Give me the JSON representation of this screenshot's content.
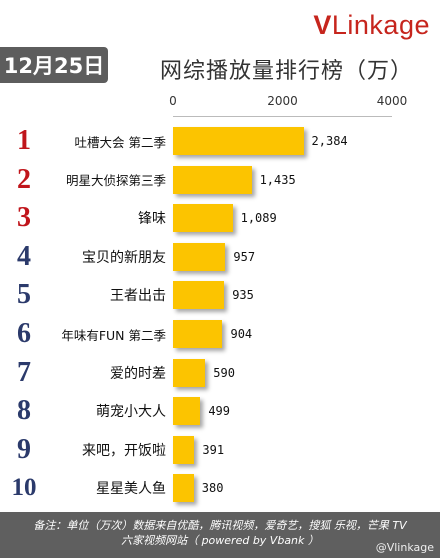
{
  "header": {
    "date_tab": "12月25日",
    "brand_prefix": "V",
    "brand_rest": "Linkage",
    "title": "网综播放量排行榜（万）"
  },
  "chart_data": {
    "type": "bar",
    "orientation": "horizontal",
    "title": "网综播放量排行榜（万）",
    "xlim": [
      0,
      4000
    ],
    "xticks": [
      "0",
      "2000",
      "4000"
    ],
    "rank_colors": {
      "top": "#c0151b",
      "other": "#2b3a6b"
    },
    "bar_color": "#fcc400",
    "categories": [
      {
        "rank": "1",
        "name": "吐槽大会 第二季",
        "value": 2384,
        "label": "2,384"
      },
      {
        "rank": "2",
        "name": "明星大侦探第三季",
        "value": 1435,
        "label": "1,435"
      },
      {
        "rank": "3",
        "name": "锋味",
        "value": 1089,
        "label": "1,089"
      },
      {
        "rank": "4",
        "name": "宝贝的新朋友",
        "value": 957,
        "label": "957"
      },
      {
        "rank": "5",
        "name": "王者出击",
        "value": 935,
        "label": "935"
      },
      {
        "rank": "6",
        "name": "年味有FUN 第二季",
        "value": 904,
        "label": "904"
      },
      {
        "rank": "7",
        "name": "爱的时差",
        "value": 590,
        "label": "590"
      },
      {
        "rank": "8",
        "name": "萌宠小大人",
        "value": 499,
        "label": "499"
      },
      {
        "rank": "9",
        "name": "来吧，开饭啦",
        "value": 391,
        "label": "391"
      },
      {
        "rank": "10",
        "name": "星星美人鱼",
        "value": 380,
        "label": "380"
      }
    ]
  },
  "footer": {
    "line1": "备注：单位（万次）数据来自优酷，腾讯视频，爱奇艺，搜狐 乐视，芒果 TV",
    "line2": "六家视频网站（ powered by Vbank ）",
    "watermark": "@Vlinkage"
  }
}
